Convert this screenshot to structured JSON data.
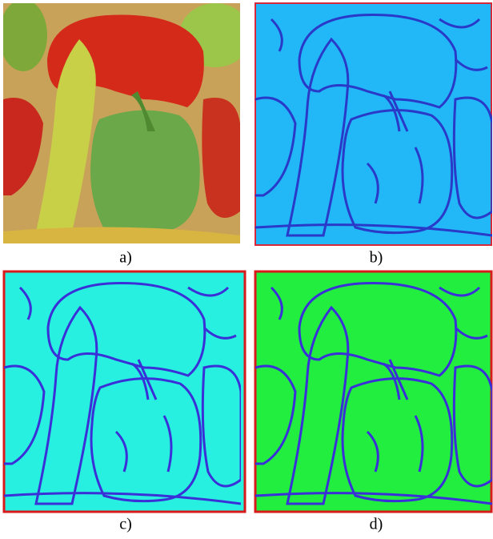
{
  "panels": [
    {
      "label": "a)"
    },
    {
      "label": "b)"
    },
    {
      "label": "c)"
    },
    {
      "label": "d)"
    }
  ]
}
